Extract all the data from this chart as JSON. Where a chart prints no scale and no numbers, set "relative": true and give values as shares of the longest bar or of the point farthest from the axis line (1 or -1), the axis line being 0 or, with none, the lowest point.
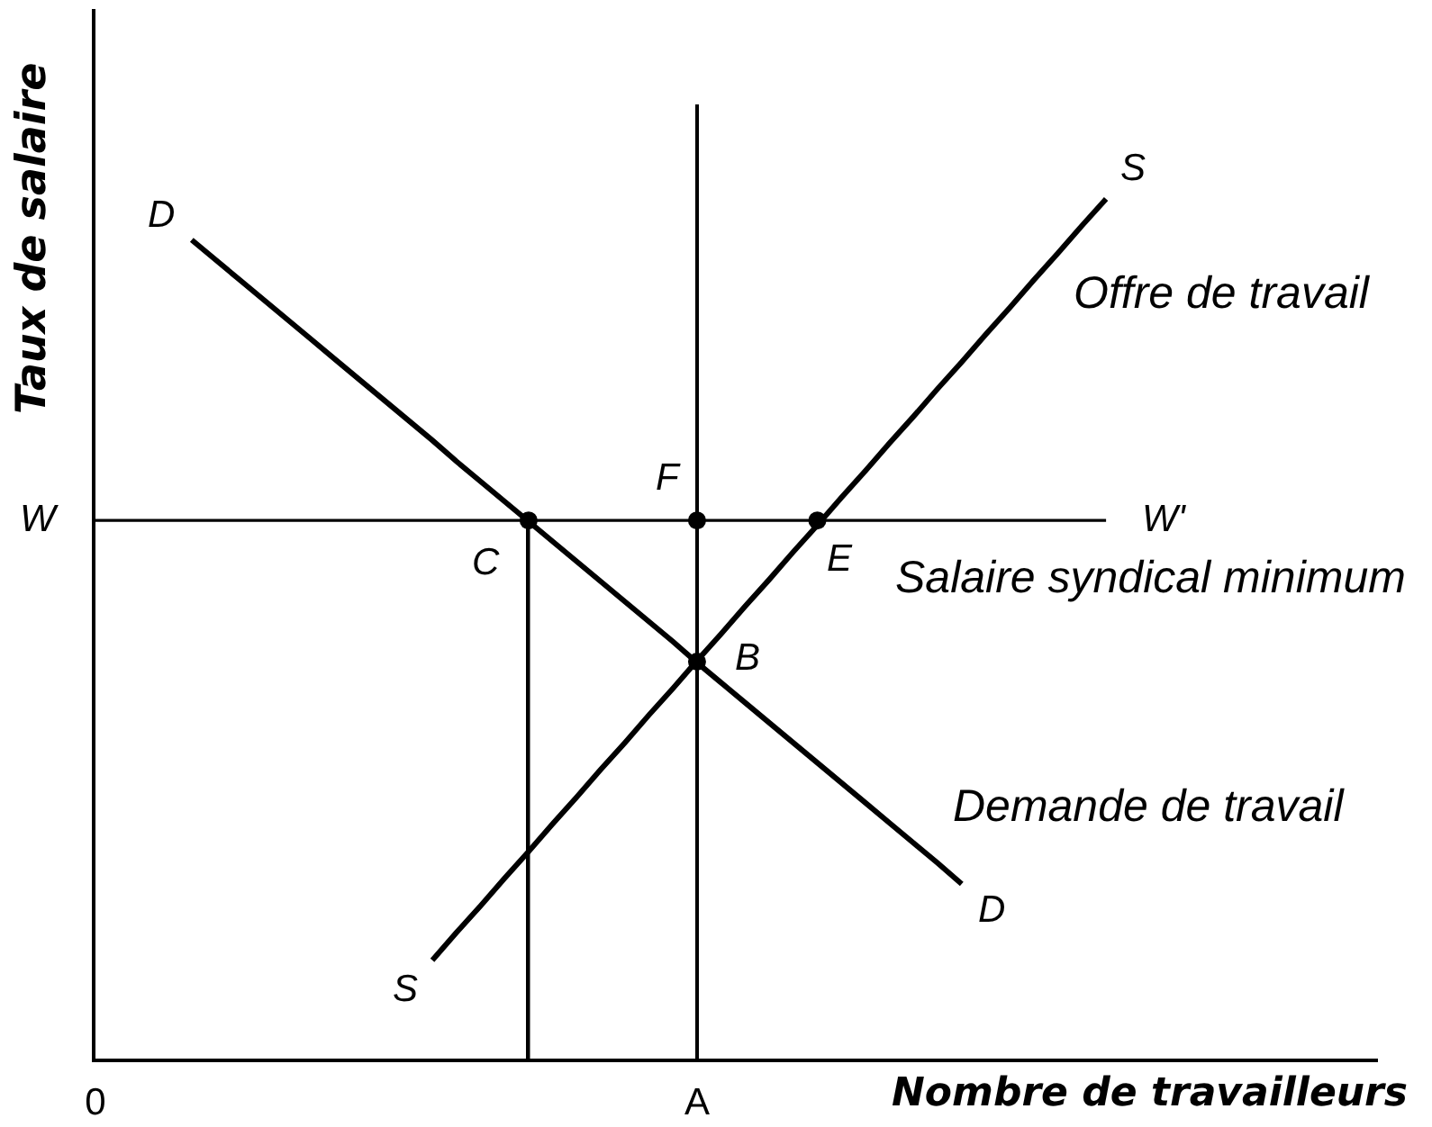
{
  "chart_data": {
    "type": "line",
    "relative": true,
    "xlabel": "Nombre de travailleurs",
    "ylabel": "Taux de salaire",
    "categories": [
      "0",
      null,
      null,
      null,
      null,
      null,
      null,
      null,
      null,
      null,
      null,
      null,
      null,
      null,
      null,
      null,
      null,
      null,
      null,
      null,
      null,
      null,
      null,
      null,
      null,
      "A",
      null,
      null,
      null,
      null,
      null,
      null,
      null,
      null,
      null,
      null,
      null,
      null,
      null,
      null,
      null,
      null,
      null,
      null,
      null,
      null,
      null,
      null,
      null,
      null,
      null,
      null,
      null,
      null
    ],
    "series": [
      {
        "name": "D",
        "color": "#000000",
        "values": [
          null,
          null,
          null,
          null,
          0.858,
          0.837,
          0.816,
          0.795,
          0.774,
          0.753,
          0.732,
          0.711,
          0.69,
          0.669,
          0.648,
          0.626,
          0.605,
          0.584,
          0.563,
          0.542,
          0.521,
          0.5,
          0.479,
          0.458,
          0.437,
          0.415,
          0.394,
          0.373,
          0.352,
          0.331,
          0.31,
          0.289,
          0.268,
          0.247,
          0.226,
          0.205,
          0.183,
          null,
          null,
          null,
          null,
          null,
          null,
          null,
          null,
          null,
          null,
          null,
          null,
          null,
          null,
          null,
          null,
          null
        ]
      },
      {
        "name": "S",
        "color": "#000000",
        "values": [
          null,
          null,
          null,
          null,
          null,
          null,
          null,
          null,
          null,
          null,
          null,
          null,
          null,
          null,
          0.103,
          0.132,
          0.16,
          0.189,
          0.217,
          0.246,
          0.274,
          0.303,
          0.331,
          0.36,
          0.388,
          0.417,
          0.445,
          0.474,
          0.502,
          0.531,
          0.559,
          0.588,
          0.616,
          0.645,
          0.673,
          0.702,
          0.73,
          0.759,
          0.787,
          0.816,
          0.844,
          0.873,
          0.901,
          null,
          null,
          null,
          null,
          null,
          null,
          null,
          null,
          null,
          null,
          null
        ]
      },
      {
        "color": "#000000",
        "values": [
          0.564,
          0.564,
          0.564,
          0.564,
          0.564,
          0.564,
          0.564,
          0.564,
          0.564,
          0.564,
          0.564,
          0.564,
          0.564,
          0.564,
          0.564,
          0.564,
          0.564,
          0.564,
          0.564,
          0.564,
          0.564,
          0.564,
          0.564,
          0.564,
          0.564,
          0.564,
          0.564,
          0.564,
          0.564,
          0.564,
          0.564,
          0.564,
          0.564,
          0.564,
          0.564,
          0.564,
          0.564,
          0.564,
          0.564,
          0.564,
          0.564,
          0.564,
          0.564,
          null,
          null,
          null,
          null,
          null,
          null,
          null,
          null,
          null,
          null,
          null
        ]
      },
      {
        "type": "bar",
        "color": "#000000",
        "values": [
          null,
          null,
          null,
          null,
          null,
          null,
          null,
          null,
          null,
          null,
          null,
          null,
          null,
          null,
          null,
          null,
          null,
          null,
          null,
          null,
          null,
          null,
          null,
          null,
          null,
          1,
          null,
          null,
          null,
          null,
          null,
          null,
          null,
          null,
          null,
          null,
          null,
          null,
          null,
          null,
          null,
          null,
          null,
          null,
          null,
          null,
          null,
          null,
          null,
          null,
          null,
          null,
          null,
          null
        ]
      },
      {
        "type": "lollipop",
        "marker": "circle",
        "color": "#000000",
        "values": [
          null,
          null,
          null,
          null,
          null,
          null,
          null,
          null,
          null,
          null,
          null,
          null,
          null,
          null,
          null,
          null,
          null,
          null,
          0.564,
          null,
          null,
          null,
          null,
          null,
          null,
          null,
          null,
          null,
          null,
          null,
          null,
          null,
          null,
          null,
          null,
          null,
          null,
          null,
          null,
          null,
          null,
          null,
          null,
          null,
          null,
          null,
          null,
          null,
          null,
          null,
          null,
          null,
          null,
          null
        ]
      },
      {
        "type": "scatter",
        "marker": "circle",
        "color": "#000000",
        "values": [
          null,
          null,
          null,
          null,
          null,
          null,
          null,
          null,
          null,
          null,
          null,
          null,
          null,
          null,
          null,
          null,
          null,
          null,
          null,
          null,
          null,
          null,
          null,
          null,
          null,
          0.564,
          null,
          null,
          null,
          null,
          0.564,
          null,
          null,
          null,
          null,
          null,
          null,
          null,
          null,
          null,
          null,
          null,
          null,
          null,
          null,
          null,
          null,
          null,
          null,
          null,
          null,
          null,
          null,
          null
        ]
      },
      {
        "type": "scatter",
        "marker": "circle",
        "color": "#000000",
        "values": [
          null,
          null,
          null,
          null,
          null,
          null,
          null,
          null,
          null,
          null,
          null,
          null,
          null,
          null,
          null,
          null,
          null,
          null,
          null,
          null,
          null,
          null,
          null,
          null,
          null,
          0.416,
          null,
          null,
          null,
          null,
          null,
          null,
          null,
          null,
          null,
          null,
          null,
          null,
          null,
          null,
          null,
          null,
          null,
          null,
          null,
          null,
          null,
          null,
          null,
          null,
          null,
          null,
          null,
          null
        ]
      }
    ],
    "annotations": [
      "W",
      "W'",
      "F",
      "C",
      "E",
      "B",
      "Offre de travail",
      "Salaire syndical minimum",
      "Demande de travail"
    ]
  }
}
